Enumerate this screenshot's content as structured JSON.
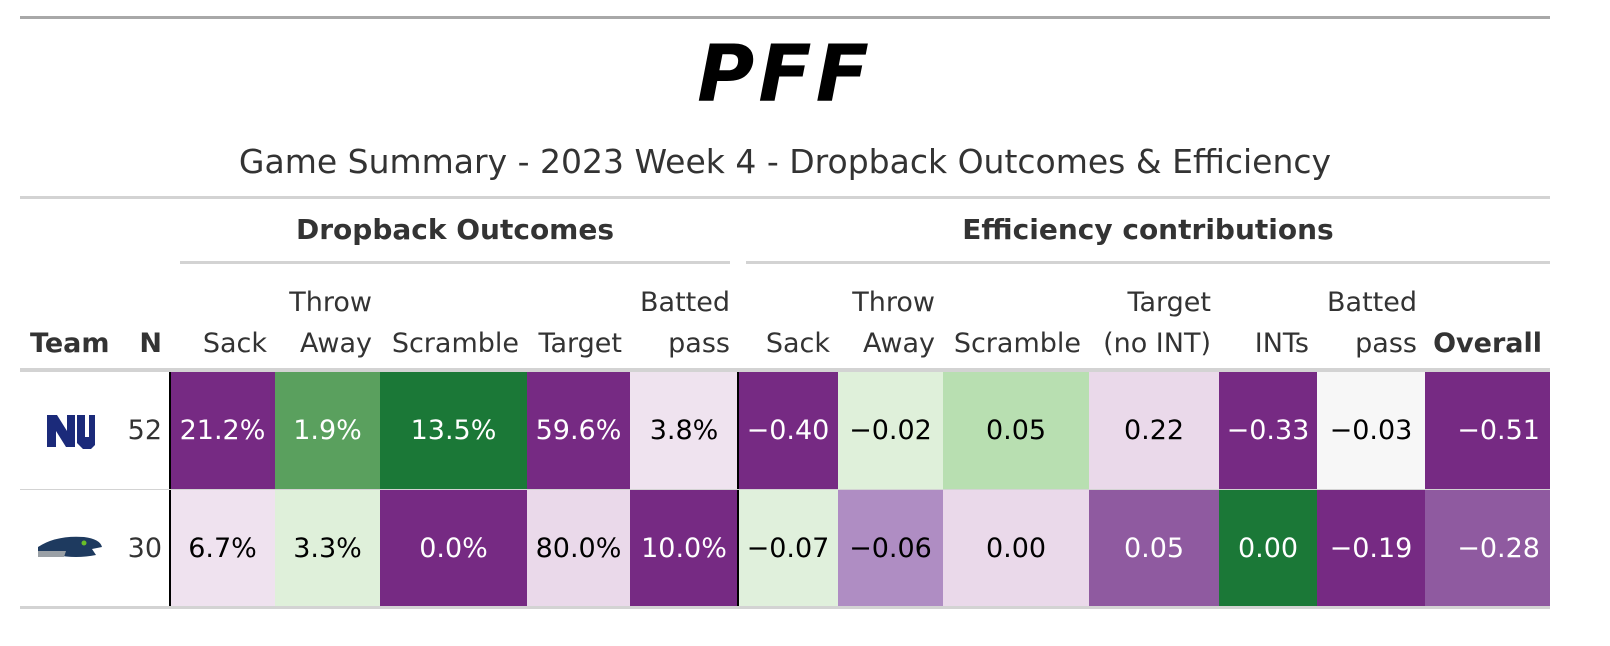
{
  "logo": "PFF",
  "title": "Game Summary - 2023 Week 4 - Dropback Outcomes & Efficiency",
  "spanners": [
    "Dropback Outcomes",
    "Efficiency contributions"
  ],
  "columns": [
    "Team",
    "N",
    "Sack",
    "Throw Away",
    "Scramble",
    "Target",
    "Batted pass",
    "Sack",
    "Throw Away",
    "Scramble",
    "Target (no INT)",
    "INTs",
    "Batted pass",
    "Overall"
  ],
  "rows": [
    {
      "n": 52,
      "cells": [
        {
          "text": "21.2%",
          "color": "#762a83"
        },
        {
          "text": "1.9%",
          "color": "#5aa05e"
        },
        {
          "text": "13.5%",
          "color": "#1b7837"
        },
        {
          "text": "59.6%",
          "color": "#762a83"
        },
        {
          "text": "3.8%",
          "color": "#efe3ef"
        },
        {
          "text": "−0.40",
          "color": "#762a83"
        },
        {
          "text": "−0.02",
          "color": "#dff0da"
        },
        {
          "text": "0.05",
          "color": "#b8dfb1"
        },
        {
          "text": "0.22",
          "color": "#ead9ea"
        },
        {
          "text": "−0.33",
          "color": "#762a83"
        },
        {
          "text": "−0.03",
          "color": "#f7f7f7"
        },
        {
          "text": "−0.51",
          "color": "#762a83"
        }
      ]
    },
    {
      "n": 30,
      "cells": [
        {
          "text": "6.7%",
          "color": "#efe2ef"
        },
        {
          "text": "3.3%",
          "color": "#dff0da"
        },
        {
          "text": "0.0%",
          "color": "#762a83"
        },
        {
          "text": "80.0%",
          "color": "#ead9ea"
        },
        {
          "text": "10.0%",
          "color": "#762a83"
        },
        {
          "text": "−0.07",
          "color": "#e0f0dc"
        },
        {
          "text": "−0.06",
          "color": "#af8dc3"
        },
        {
          "text": "0.00",
          "color": "#ead9ea"
        },
        {
          "text": "0.05",
          "color": "#8f5aa0"
        },
        {
          "text": "0.00",
          "color": "#1b7837"
        },
        {
          "text": "−0.19",
          "color": "#762a83"
        },
        {
          "text": "−0.28",
          "color": "#8f5aa0"
        }
      ]
    }
  ]
}
